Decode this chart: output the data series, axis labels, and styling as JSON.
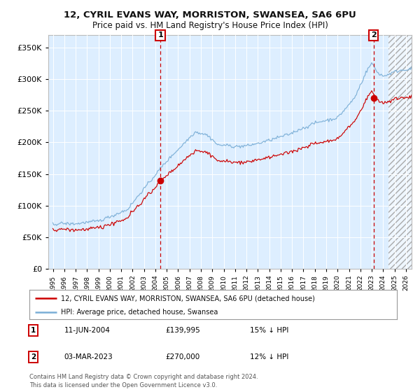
{
  "title": "12, CYRIL EVANS WAY, MORRISTON, SWANSEA, SA6 6PU",
  "subtitle": "Price paid vs. HM Land Registry's House Price Index (HPI)",
  "legend_line1": "12, CYRIL EVANS WAY, MORRISTON, SWANSEA, SA6 6PU (detached house)",
  "legend_line2": "HPI: Average price, detached house, Swansea",
  "annotation1_date": "11-JUN-2004",
  "annotation1_price": "£139,995",
  "annotation1_hpi": "15% ↓ HPI",
  "annotation2_date": "03-MAR-2023",
  "annotation2_price": "£270,000",
  "annotation2_hpi": "12% ↓ HPI",
  "footer": "Contains HM Land Registry data © Crown copyright and database right 2024.\nThis data is licensed under the Open Government Licence v3.0.",
  "hpi_color": "#7aaed6",
  "price_color": "#cc0000",
  "dot_color": "#cc0000",
  "vline_color": "#cc0000",
  "chart_bg": "#ddeeff",
  "ylim": [
    0,
    370000
  ],
  "yticks": [
    0,
    50000,
    100000,
    150000,
    200000,
    250000,
    300000,
    350000
  ],
  "xlim_left": 1994.6,
  "xlim_right": 2026.5,
  "sale1_x": 2004.44,
  "sale1_y": 139995,
  "sale2_x": 2023.17,
  "sale2_y": 270000,
  "hatch_start": 2024.5
}
